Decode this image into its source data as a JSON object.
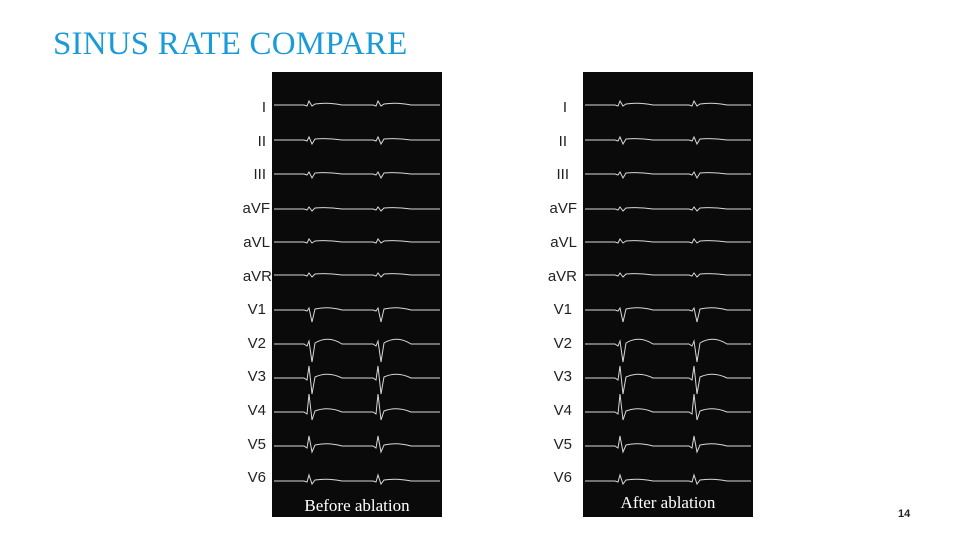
{
  "slide": {
    "title": "SINUS RATE COMPARE",
    "page_number": "14",
    "accent_color": "#1a9bd7"
  },
  "panels": [
    {
      "id": "before",
      "caption": "Before ablation",
      "leads": [
        "I",
        "II",
        "III",
        "aVF",
        "aVL",
        "aVR",
        "V1",
        "V2",
        "V3",
        "V4",
        "V5",
        "V6"
      ]
    },
    {
      "id": "after",
      "caption": "After ablation",
      "leads": [
        "I",
        "II",
        "III",
        "aVF",
        "aVL",
        "aVR",
        "V1",
        "V2",
        "V3",
        "V4",
        "V5",
        "V6"
      ]
    }
  ]
}
